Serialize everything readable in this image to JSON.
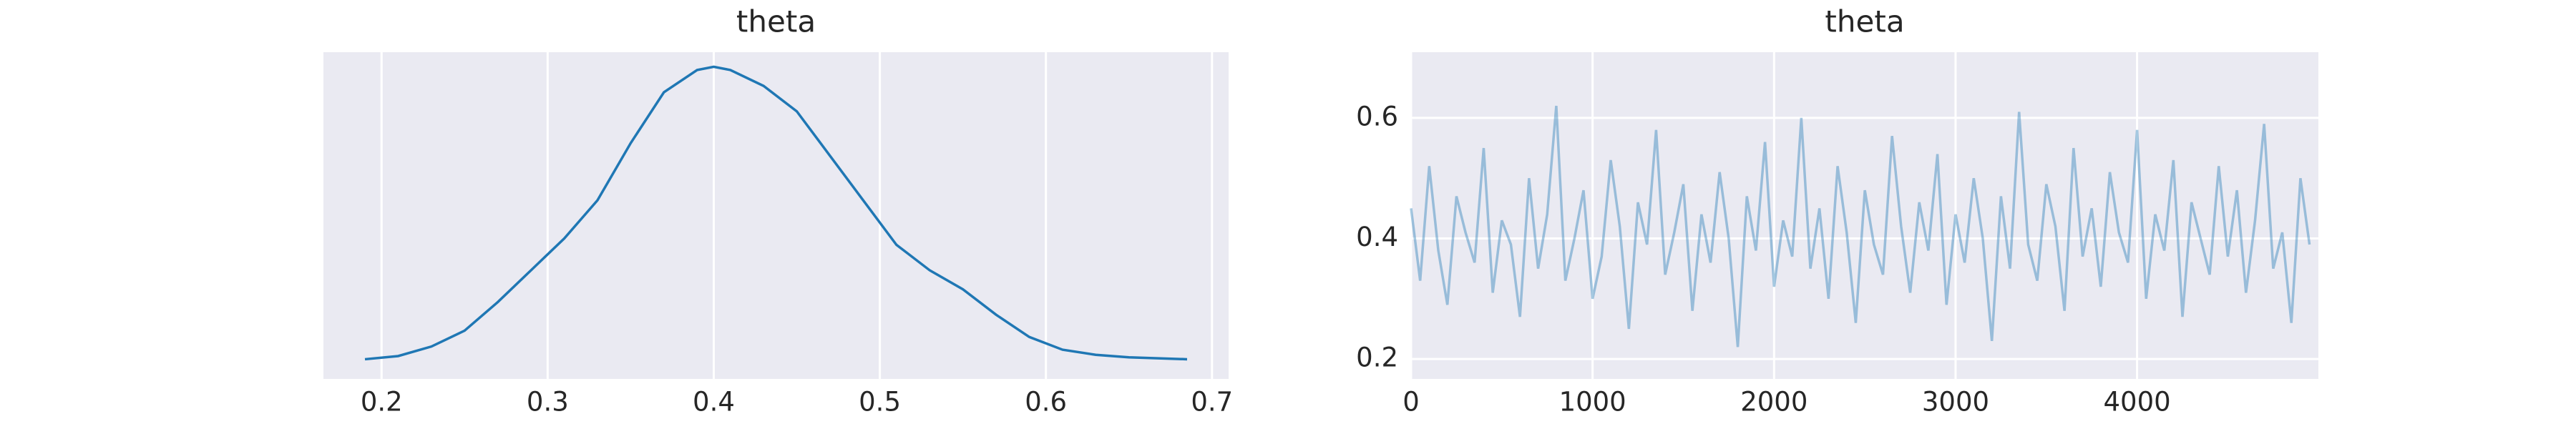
{
  "chart_data": [
    {
      "type": "line",
      "title": "theta",
      "color": "#1f77b4",
      "alpha": 1,
      "grid": "x",
      "x": [
        0.19,
        0.21,
        0.23,
        0.25,
        0.27,
        0.29,
        0.31,
        0.33,
        0.35,
        0.37,
        0.39,
        0.4,
        0.41,
        0.43,
        0.45,
        0.47,
        0.49,
        0.51,
        0.53,
        0.55,
        0.57,
        0.59,
        0.61,
        0.63,
        0.65,
        0.685
      ],
      "values": [
        0.1,
        0.15,
        0.3,
        0.55,
        1.0,
        1.5,
        2.0,
        2.6,
        3.5,
        4.3,
        4.65,
        4.7,
        4.65,
        4.4,
        4.0,
        3.3,
        2.6,
        1.9,
        1.5,
        1.2,
        0.8,
        0.45,
        0.25,
        0.17,
        0.13,
        0.1
      ],
      "xlim": [
        0.165,
        0.71
      ],
      "xticks": [
        0.2,
        0.3,
        0.4,
        0.5,
        0.6,
        0.7
      ],
      "ylim": [
        -0.21,
        4.93
      ]
    },
    {
      "type": "line",
      "title": "theta",
      "color": "#1f77b4",
      "alpha": 0.4,
      "grid": "both",
      "x": [
        0,
        50,
        100,
        150,
        200,
        250,
        300,
        350,
        400,
        450,
        500,
        550,
        600,
        650,
        700,
        750,
        800,
        850,
        900,
        950,
        1000,
        1050,
        1100,
        1150,
        1200,
        1250,
        1300,
        1350,
        1400,
        1450,
        1500,
        1550,
        1600,
        1650,
        1700,
        1750,
        1800,
        1850,
        1900,
        1950,
        2000,
        2050,
        2100,
        2150,
        2200,
        2250,
        2300,
        2350,
        2400,
        2450,
        2500,
        2550,
        2600,
        2650,
        2700,
        2750,
        2800,
        2850,
        2900,
        2950,
        3000,
        3050,
        3100,
        3150,
        3200,
        3250,
        3300,
        3350,
        3400,
        3450,
        3500,
        3550,
        3600,
        3650,
        3700,
        3750,
        3800,
        3850,
        3900,
        3950,
        4000,
        4050,
        4100,
        4150,
        4200,
        4250,
        4300,
        4350,
        4400,
        4450,
        4500,
        4550,
        4600,
        4650,
        4700,
        4750,
        4800,
        4850,
        4900,
        4950
      ],
      "values": [
        0.45,
        0.33,
        0.52,
        0.38,
        0.29,
        0.47,
        0.41,
        0.36,
        0.55,
        0.31,
        0.43,
        0.39,
        0.27,
        0.5,
        0.35,
        0.44,
        0.62,
        0.33,
        0.4,
        0.48,
        0.3,
        0.37,
        0.53,
        0.42,
        0.25,
        0.46,
        0.39,
        0.58,
        0.34,
        0.41,
        0.49,
        0.28,
        0.44,
        0.36,
        0.51,
        0.4,
        0.22,
        0.47,
        0.38,
        0.56,
        0.32,
        0.43,
        0.37,
        0.6,
        0.35,
        0.45,
        0.3,
        0.52,
        0.41,
        0.26,
        0.48,
        0.39,
        0.34,
        0.57,
        0.42,
        0.31,
        0.46,
        0.38,
        0.54,
        0.29,
        0.44,
        0.36,
        0.5,
        0.4,
        0.23,
        0.47,
        0.35,
        0.61,
        0.39,
        0.33,
        0.49,
        0.42,
        0.28,
        0.55,
        0.37,
        0.45,
        0.32,
        0.51,
        0.41,
        0.36,
        0.58,
        0.3,
        0.44,
        0.38,
        0.53,
        0.27,
        0.46,
        0.4,
        0.34,
        0.52,
        0.37,
        0.48,
        0.31,
        0.43,
        0.59,
        0.35,
        0.41,
        0.26,
        0.5,
        0.39
      ],
      "xlim": [
        0,
        4999
      ],
      "xticks": [
        0,
        1000,
        2000,
        3000,
        4000
      ],
      "ylim": [
        0.167,
        0.709
      ],
      "yticks": [
        0.2,
        0.4,
        0.6
      ]
    }
  ]
}
